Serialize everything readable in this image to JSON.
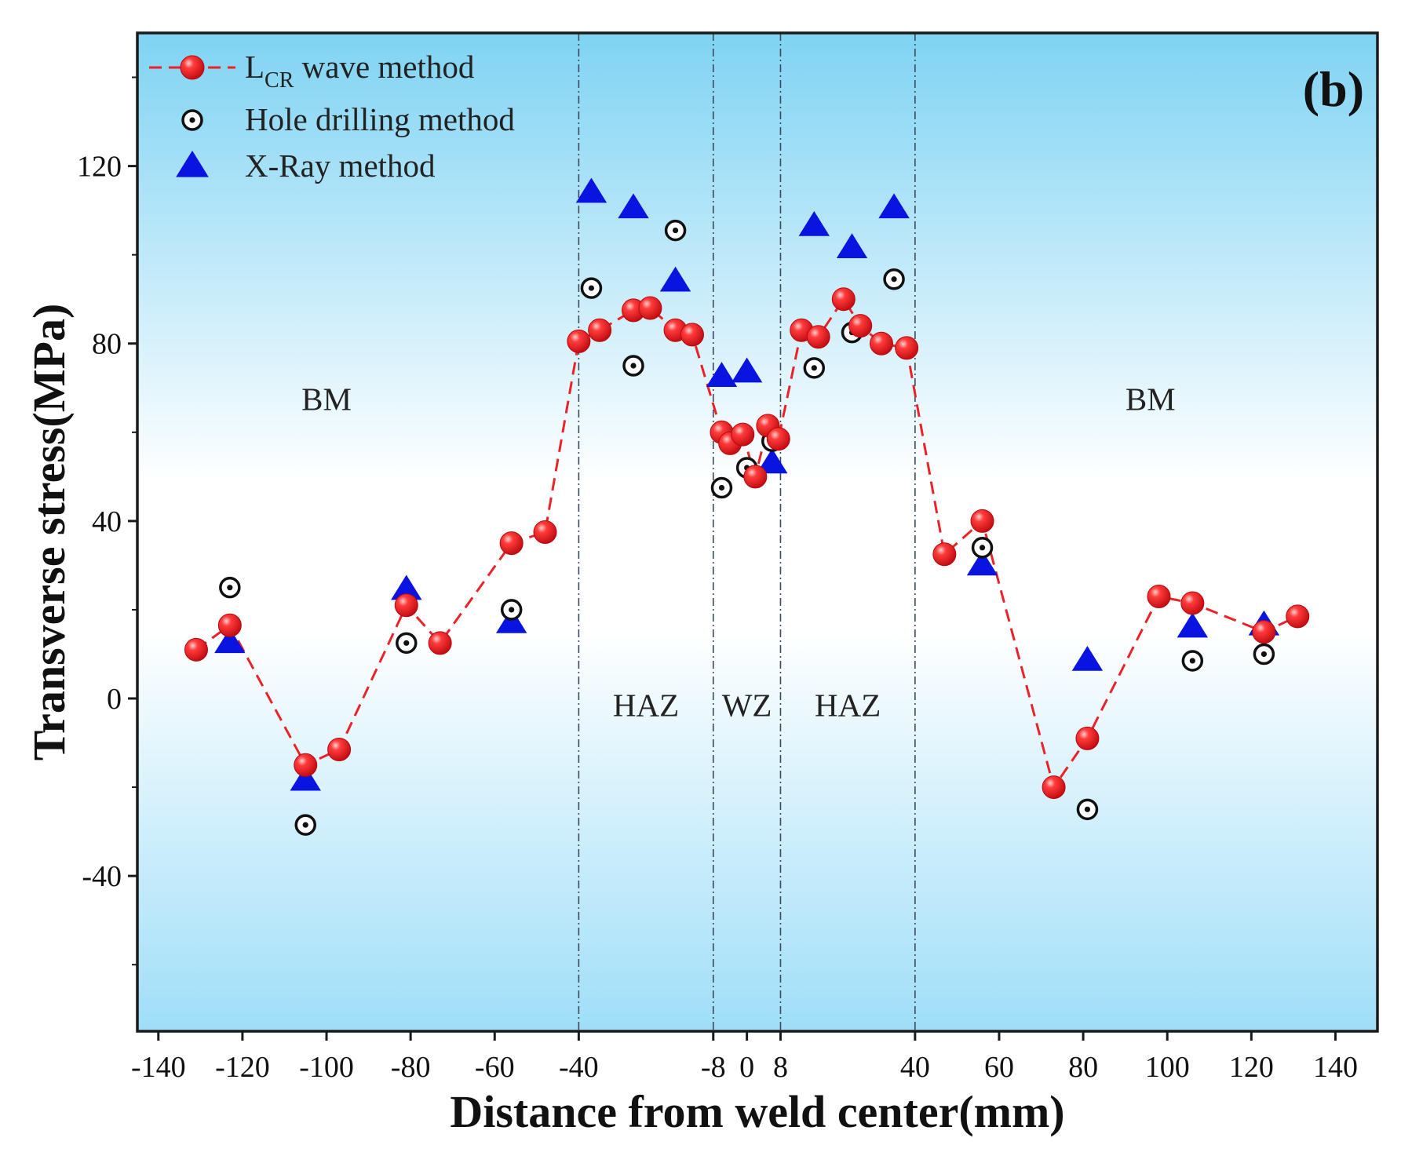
{
  "chart_data": {
    "type": "scatter",
    "panel_label": "(b)",
    "xlabel": "Distance from weld center(mm)",
    "ylabel": "Transverse stress(MPa)",
    "xlim": [
      -145,
      150
    ],
    "ylim": [
      -75,
      150
    ],
    "x_ticks": [
      -140,
      -120,
      -100,
      -80,
      -60,
      -40,
      -8,
      0,
      8,
      40,
      60,
      80,
      100,
      120,
      140
    ],
    "x_tick_labels": [
      "-140",
      "-120",
      "-100",
      "-80",
      "-60",
      "-40",
      "-8",
      "0",
      "8",
      "40",
      "60",
      "80",
      "100",
      "120",
      "140"
    ],
    "y_ticks": [
      -40,
      0,
      40,
      80,
      120
    ],
    "y_tick_labels": [
      "-40",
      "0",
      "40",
      "80",
      "120"
    ],
    "boundaries": [
      -40,
      -8,
      8,
      40
    ],
    "regions": [
      {
        "label": "BM",
        "x": -100,
        "y": 65
      },
      {
        "label": "HAZ",
        "x": -24,
        "y": -4
      },
      {
        "label": "WZ",
        "x": 0,
        "y": -4
      },
      {
        "label": "HAZ",
        "x": 24,
        "y": -4
      },
      {
        "label": "BM",
        "x": 96,
        "y": 65
      }
    ],
    "legend": {
      "position": "top-left",
      "entries": [
        {
          "main": "L",
          "sub": "CR",
          "rest": " wave method"
        },
        {
          "main": "Hole drilling method"
        },
        {
          "main": "X-Ray method"
        }
      ]
    },
    "series": [
      {
        "name": "LCR wave method",
        "marker": "sphere",
        "line": "dashed",
        "color": "#e8242a",
        "points": [
          [
            -131,
            11
          ],
          [
            -123,
            16.5
          ],
          [
            -105,
            -15
          ],
          [
            -97,
            -11.5
          ],
          [
            -81,
            21
          ],
          [
            -73,
            12.5
          ],
          [
            -56,
            35
          ],
          [
            -48,
            37.5
          ],
          [
            -40,
            80.5
          ],
          [
            -35,
            83
          ],
          [
            -27,
            87.5
          ],
          [
            -23,
            88
          ],
          [
            -17,
            83
          ],
          [
            -13,
            82
          ],
          [
            -6,
            60
          ],
          [
            -4,
            57.5
          ],
          [
            -1,
            59.5
          ],
          [
            2,
            50
          ],
          [
            5,
            61.5
          ],
          [
            7.5,
            58.5
          ],
          [
            13,
            83
          ],
          [
            17,
            81.5
          ],
          [
            23,
            90
          ],
          [
            27,
            84
          ],
          [
            32,
            80
          ],
          [
            38,
            79
          ],
          [
            47,
            32.5
          ],
          [
            56,
            40
          ],
          [
            73,
            -20
          ],
          [
            81,
            -9
          ],
          [
            98,
            23
          ],
          [
            106,
            21.5
          ],
          [
            123,
            15
          ],
          [
            131,
            18.5
          ]
        ]
      },
      {
        "name": "Hole drilling method",
        "marker": "dotted-circle",
        "color": "#111111",
        "points": [
          [
            -123,
            25
          ],
          [
            -105,
            -28.5
          ],
          [
            -81,
            12.5
          ],
          [
            -56,
            20
          ],
          [
            -37,
            92.5
          ],
          [
            -27,
            75
          ],
          [
            -17,
            105.5
          ],
          [
            -6,
            47.5
          ],
          [
            0,
            52
          ],
          [
            6,
            58
          ],
          [
            16,
            74.5
          ],
          [
            25,
            82.5
          ],
          [
            35,
            94.5
          ],
          [
            56,
            34
          ],
          [
            81,
            -25
          ],
          [
            106,
            8.5
          ],
          [
            123,
            10
          ]
        ]
      },
      {
        "name": "X-Ray method",
        "marker": "triangle",
        "color": "#0a14e0",
        "points": [
          [
            -123,
            12.5
          ],
          [
            -105,
            -18.5
          ],
          [
            -81,
            24.5
          ],
          [
            -56,
            17
          ],
          [
            -37,
            114
          ],
          [
            -27,
            110.5
          ],
          [
            -17,
            94
          ],
          [
            -6,
            72.5
          ],
          [
            0,
            73.5
          ],
          [
            6,
            53
          ],
          [
            16,
            106.5
          ],
          [
            25,
            101.5
          ],
          [
            35,
            110.5
          ],
          [
            56,
            30
          ],
          [
            81,
            8.5
          ],
          [
            106,
            16
          ],
          [
            123,
            16.5
          ]
        ]
      }
    ]
  }
}
